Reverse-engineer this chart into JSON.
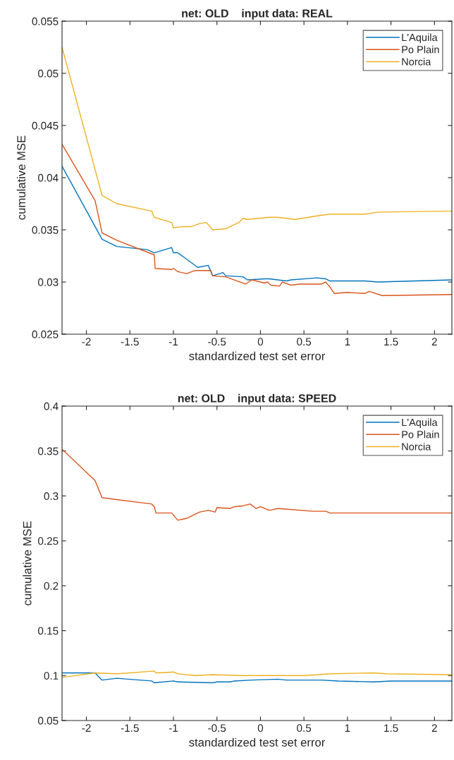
{
  "chart_data": [
    {
      "type": "line",
      "title": "net: OLD    input data: REAL",
      "xlabel": "standardized test set error",
      "ylabel": "cumulative MSE",
      "xlim": [
        -2.28,
        2.2
      ],
      "xticks": [
        -2,
        -1.5,
        -1,
        -0.5,
        0,
        0.5,
        1,
        1.5,
        2
      ],
      "ylim": [
        0.025,
        0.055
      ],
      "yticks": [
        0.025,
        0.03,
        0.035,
        0.04,
        0.045,
        0.05,
        0.055
      ],
      "legend": "top right",
      "grid": false,
      "series": [
        {
          "name": "L'Aquila",
          "color": "#0072bd",
          "x": [
            -2.28,
            -1.82,
            -1.65,
            -1.3,
            -1.22,
            -1.02,
            -1.0,
            -0.95,
            -0.85,
            -0.72,
            -0.6,
            -0.55,
            -0.43,
            -0.4,
            -0.2,
            -0.15,
            0.05,
            0.1,
            0.3,
            0.35,
            0.65,
            0.75,
            0.8,
            1.2,
            1.35,
            2.2
          ],
          "values": [
            0.0411,
            0.0341,
            0.0334,
            0.0331,
            0.0328,
            0.0333,
            0.0328,
            0.0328,
            0.0322,
            0.0314,
            0.0316,
            0.0306,
            0.0309,
            0.0306,
            0.0305,
            0.0302,
            0.0303,
            0.0303,
            0.0301,
            0.0302,
            0.0304,
            0.0303,
            0.0301,
            0.0301,
            0.03,
            0.0302
          ]
        },
        {
          "name": "Po Plain",
          "color": "#d95319",
          "x": [
            -2.28,
            -1.9,
            -1.82,
            -1.65,
            -1.22,
            -1.21,
            -1.02,
            -1.0,
            -0.95,
            -0.85,
            -0.75,
            -0.6,
            -0.57,
            -0.55,
            -0.4,
            -0.17,
            -0.1,
            0.05,
            0.08,
            0.12,
            0.22,
            0.25,
            0.35,
            0.45,
            0.7,
            0.75,
            0.8,
            0.85,
            1.0,
            1.2,
            1.25,
            1.4,
            2.2
          ],
          "values": [
            0.0432,
            0.0378,
            0.0347,
            0.034,
            0.0326,
            0.0313,
            0.0312,
            0.0313,
            0.031,
            0.0308,
            0.0311,
            0.0311,
            0.0311,
            0.0306,
            0.0305,
            0.0298,
            0.0302,
            0.0299,
            0.03,
            0.0297,
            0.0296,
            0.03,
            0.0297,
            0.0298,
            0.0298,
            0.03,
            0.0295,
            0.0289,
            0.029,
            0.0289,
            0.0291,
            0.0287,
            0.0288
          ]
        },
        {
          "name": "Norcia",
          "color": "#edb120",
          "x": [
            -2.28,
            -1.82,
            -1.65,
            -1.25,
            -1.22,
            -1.02,
            -1.0,
            -0.9,
            -0.8,
            -0.7,
            -0.62,
            -0.55,
            -0.4,
            -0.25,
            -0.2,
            -0.15,
            0.1,
            0.2,
            0.4,
            0.7,
            0.8,
            1.2,
            1.35,
            2.2
          ],
          "values": [
            0.0525,
            0.0383,
            0.0375,
            0.0368,
            0.0362,
            0.0357,
            0.0352,
            0.0353,
            0.0353,
            0.0356,
            0.0357,
            0.035,
            0.0351,
            0.0357,
            0.0361,
            0.036,
            0.0362,
            0.0362,
            0.036,
            0.0364,
            0.0365,
            0.0365,
            0.0367,
            0.0368
          ]
        }
      ]
    },
    {
      "type": "line",
      "title": "net: OLD    input data: SPEED",
      "xlabel": "standardized test set error",
      "ylabel": "cumulative MSE",
      "xlim": [
        -2.28,
        2.2
      ],
      "xticks": [
        -2,
        -1.5,
        -1,
        -0.5,
        0,
        0.5,
        1,
        1.5,
        2
      ],
      "ylim": [
        0.05,
        0.4
      ],
      "yticks": [
        0.05,
        0.1,
        0.15,
        0.2,
        0.25,
        0.3,
        0.35,
        0.4
      ],
      "legend": "top right",
      "grid": false,
      "series": [
        {
          "name": "L'Aquila",
          "color": "#0072bd",
          "x": [
            -2.28,
            -1.9,
            -1.82,
            -1.65,
            -1.25,
            -1.22,
            -1.0,
            -0.95,
            -0.55,
            -0.5,
            -0.35,
            -0.3,
            -0.1,
            0.2,
            0.3,
            0.7,
            0.9,
            1.3,
            1.5,
            2.2
          ],
          "values": [
            0.103,
            0.103,
            0.095,
            0.097,
            0.094,
            0.092,
            0.094,
            0.093,
            0.092,
            0.093,
            0.093,
            0.094,
            0.095,
            0.096,
            0.095,
            0.095,
            0.094,
            0.093,
            0.094,
            0.094
          ]
        },
        {
          "name": "Po Plain",
          "color": "#d95319",
          "x": [
            -2.28,
            -1.9,
            -1.82,
            -1.25,
            -1.22,
            -1.2,
            -1.02,
            -0.95,
            -0.85,
            -0.7,
            -0.6,
            -0.52,
            -0.5,
            -0.35,
            -0.3,
            -0.2,
            -0.12,
            -0.05,
            0.0,
            0.1,
            0.2,
            0.6,
            0.75,
            0.8,
            1.5,
            2.2
          ],
          "values": [
            0.352,
            0.317,
            0.298,
            0.291,
            0.288,
            0.281,
            0.281,
            0.273,
            0.275,
            0.282,
            0.284,
            0.282,
            0.287,
            0.286,
            0.288,
            0.289,
            0.291,
            0.286,
            0.288,
            0.284,
            0.286,
            0.283,
            0.283,
            0.281,
            0.281,
            0.281
          ]
        },
        {
          "name": "Norcia",
          "color": "#edb120",
          "x": [
            -2.28,
            -1.9,
            -1.65,
            -1.22,
            -1.2,
            -1.0,
            -0.95,
            -0.75,
            -0.55,
            -0.2,
            -0.1,
            0.5,
            0.8,
            1.3,
            1.45,
            2.2
          ],
          "values": [
            0.098,
            0.103,
            0.102,
            0.105,
            0.103,
            0.104,
            0.102,
            0.1,
            0.101,
            0.1,
            0.1,
            0.1,
            0.102,
            0.103,
            0.102,
            0.101
          ]
        }
      ]
    }
  ]
}
